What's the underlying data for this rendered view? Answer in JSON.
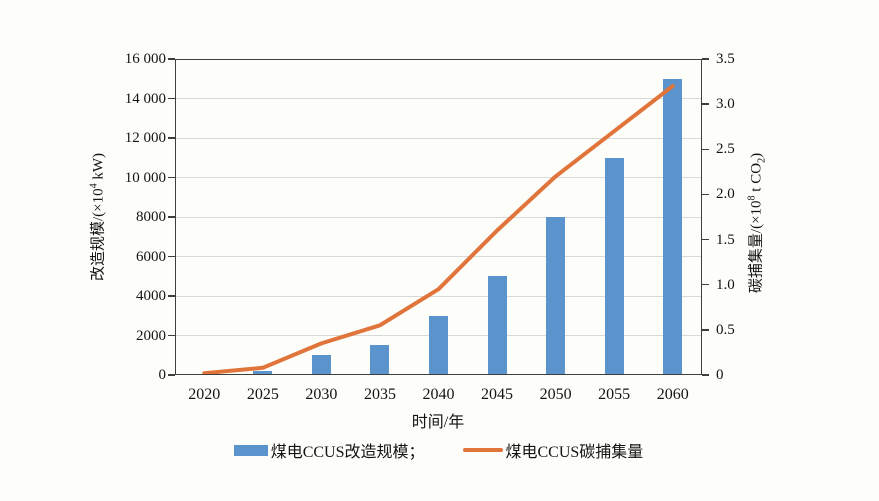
{
  "page": {
    "background": "#fdfdfa"
  },
  "chart_data": {
    "type": "bar",
    "title": "",
    "categories": [
      "2020",
      "2025",
      "2030",
      "2035",
      "2040",
      "2045",
      "2050",
      "2055",
      "2060"
    ],
    "series": [
      {
        "name": "煤电CCUS改造规模",
        "kind": "bar",
        "axis": "left",
        "color": "#5B94CC",
        "values": [
          0,
          200,
          1000,
          1500,
          3000,
          5000,
          8000,
          11000,
          15000
        ]
      },
      {
        "name": "煤电CCUS碳捕集量",
        "kind": "line",
        "axis": "right",
        "color": "#E0743A",
        "values": [
          0.02,
          0.08,
          0.35,
          0.55,
          0.95,
          1.6,
          2.2,
          2.7,
          3.2
        ]
      }
    ],
    "axes": {
      "x": {
        "label": "时间/年"
      },
      "left": {
        "label": "改造规模/(×10^4 kW)",
        "label_parts": {
          "pre": "改造规模/(×10",
          "sup": "4",
          "post": " kW)"
        },
        "min": 0,
        "max": 16000,
        "tick_step": 2000,
        "tick_labels": [
          "0",
          "2000",
          "4000",
          "6000",
          "8000",
          "10 000",
          "12 000",
          "14 000",
          "16 000"
        ]
      },
      "right": {
        "label": "碳捕集量/(×10^8 t CO2)",
        "label_parts": {
          "pre": "碳捕集量/(×10",
          "sup": "8",
          "mid": " t CO",
          "sub": "2",
          "post": ")"
        },
        "min": 0,
        "max": 3.5,
        "tick_step": 0.5,
        "tick_labels": [
          "0",
          "0.5",
          "1.0",
          "1.5",
          "2.0",
          "2.5",
          "3.0",
          "3.5"
        ]
      }
    },
    "grid": {
      "horizontal": true,
      "color": "#d9d9d9",
      "aligned_to": "left-axis-ticks"
    },
    "legend": {
      "position": "bottom",
      "items": [
        {
          "label": "煤电CCUS改造规模；",
          "swatch": "bar",
          "color": "#5B94CC"
        },
        {
          "label": "煤电CCUS碳捕集量",
          "swatch": "line",
          "color": "#E0743A"
        }
      ]
    }
  }
}
